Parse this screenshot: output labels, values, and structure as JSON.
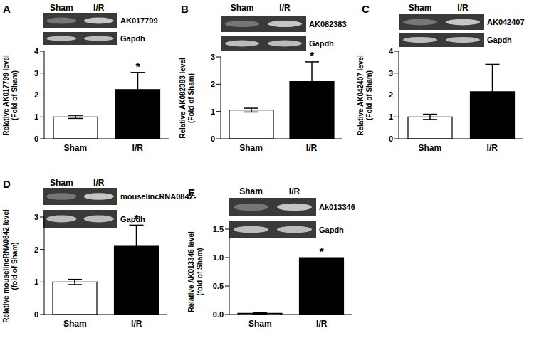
{
  "chart_data": [
    {
      "panel": "A",
      "type": "bar",
      "categories": [
        "Sham",
        "I/R"
      ],
      "values": [
        1.0,
        2.25
      ],
      "errors": [
        0.07,
        0.78
      ],
      "significance": [
        null,
        "*"
      ],
      "colors": [
        "#ffffff",
        "#000000"
      ],
      "ylabel": [
        "Relative AK017799 level",
        "(Fold of Sham)"
      ],
      "ylim": [
        0,
        4
      ],
      "yticks": [
        0,
        1,
        2,
        3,
        4
      ],
      "gel": {
        "lanes": [
          "Sham",
          "I/R"
        ],
        "bands": [
          "AK017799",
          "Gapdh"
        ]
      }
    },
    {
      "panel": "B",
      "type": "bar",
      "categories": [
        "Sham",
        "I/R"
      ],
      "values": [
        1.05,
        2.1
      ],
      "errors": [
        0.07,
        0.72
      ],
      "significance": [
        null,
        "*"
      ],
      "colors": [
        "#ffffff",
        "#000000"
      ],
      "ylabel": [
        "Relative AK082383 level",
        "(Fold of Sham)"
      ],
      "ylim": [
        0,
        3
      ],
      "yticks": [
        0,
        1,
        2,
        3
      ],
      "gel": {
        "lanes": [
          "Sham",
          "I/R"
        ],
        "bands": [
          "AK082383",
          "Gapdh"
        ]
      }
    },
    {
      "panel": "C",
      "type": "bar",
      "categories": [
        "Sham",
        "I/R"
      ],
      "values": [
        1.0,
        2.15
      ],
      "errors": [
        0.12,
        1.25
      ],
      "significance": [
        null,
        null
      ],
      "colors": [
        "#ffffff",
        "#000000"
      ],
      "ylabel": [
        "Relative AK042407 level",
        "(Fold of Sham)"
      ],
      "ylim": [
        0,
        4
      ],
      "yticks": [
        0,
        1,
        2,
        3,
        4
      ],
      "gel": {
        "lanes": [
          "Sham",
          "I/R"
        ],
        "bands": [
          "AK042407",
          "Gapdh"
        ]
      }
    },
    {
      "panel": "D",
      "type": "bar",
      "categories": [
        "Sham",
        "I/R"
      ],
      "values": [
        1.0,
        2.1
      ],
      "errors": [
        0.08,
        0.65
      ],
      "significance": [
        null,
        "*"
      ],
      "colors": [
        "#ffffff",
        "#000000"
      ],
      "ylabel": [
        "Relative mouselincRNA0842 level",
        "(fold of Sham)"
      ],
      "ylim": [
        0,
        3
      ],
      "yticks": [
        0,
        1,
        2,
        3
      ],
      "gel": {
        "lanes": [
          "Sham",
          "I/R"
        ],
        "bands": [
          "mouselincRNA0842-",
          "Gapdh"
        ]
      }
    },
    {
      "panel": "E",
      "type": "bar",
      "categories": [
        "Sham",
        "I/R"
      ],
      "values": [
        0.02,
        1.0
      ],
      "errors": [
        0.01,
        0
      ],
      "significance": [
        null,
        "*"
      ],
      "colors": [
        "#ffffff",
        "#000000"
      ],
      "ylabel": [
        "Relative AK013346 level",
        "(fold of Sham)"
      ],
      "ylim": [
        0,
        1.5
      ],
      "yticks": [
        {
          "value": 0,
          "label": "0.0"
        },
        0.5,
        {
          "value": 1,
          "label": "1.0"
        },
        1.5
      ],
      "gel": {
        "lanes": [
          "Sham",
          "I/R"
        ],
        "bands": [
          "Ak013346",
          "Gapdh"
        ]
      }
    }
  ]
}
